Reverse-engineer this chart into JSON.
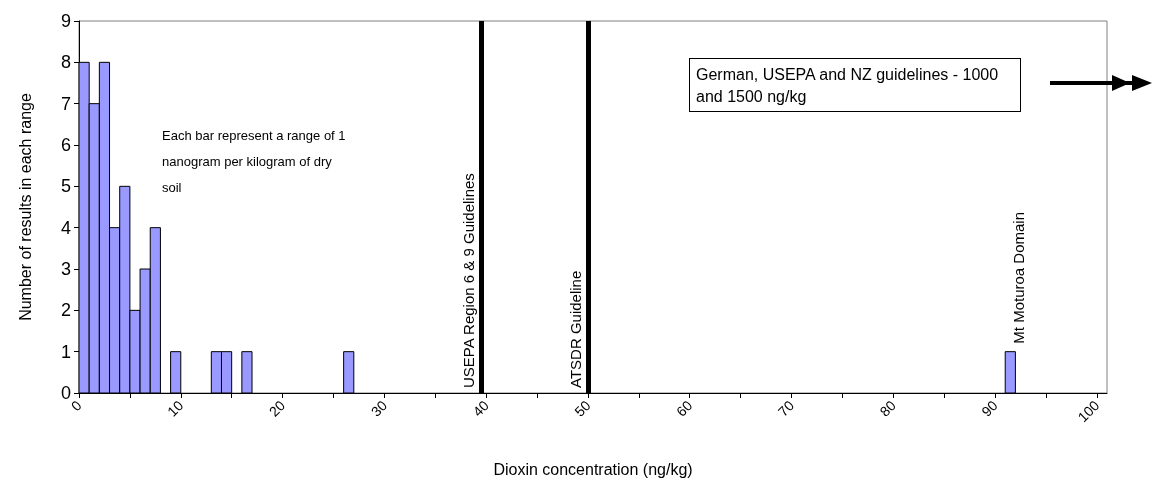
{
  "chart_data": {
    "type": "histogram",
    "xlabel": "Dioxin concentration (ng/kg)",
    "ylabel": "Number of results in each range",
    "bins": [
      0,
      1,
      2,
      3,
      4,
      5,
      6,
      7,
      8,
      9,
      10,
      11,
      12,
      13,
      14,
      15,
      16,
      17,
      18,
      19,
      20,
      21,
      22,
      23,
      24,
      25,
      26,
      27,
      28,
      29,
      30,
      31,
      32,
      33,
      34,
      35,
      36,
      37,
      38,
      39,
      40,
      41,
      42,
      43,
      44,
      45,
      46,
      47,
      48,
      49,
      50,
      51,
      52,
      53,
      54,
      55,
      56,
      57,
      58,
      59,
      60,
      61,
      62,
      63,
      64,
      65,
      66,
      67,
      68,
      69,
      70,
      71,
      72,
      73,
      74,
      75,
      76,
      77,
      78,
      79,
      80,
      81,
      82,
      83,
      84,
      85,
      86,
      87,
      88,
      89,
      90,
      91,
      92
    ],
    "values": [
      8,
      7,
      8,
      4,
      5,
      2,
      3,
      4,
      0,
      1,
      0,
      0,
      0,
      1,
      1,
      0,
      1,
      0,
      0,
      0,
      0,
      0,
      0,
      0,
      0,
      0,
      1,
      0,
      0,
      0,
      0,
      0,
      0,
      0,
      0,
      0,
      0,
      0,
      0,
      0,
      0,
      0,
      0,
      0,
      0,
      0,
      0,
      0,
      0,
      0,
      0,
      0,
      0,
      0,
      0,
      0,
      0,
      0,
      0,
      0,
      0,
      0,
      0,
      0,
      0,
      0,
      0,
      0,
      0,
      0,
      0,
      0,
      0,
      0,
      0,
      0,
      0,
      0,
      0,
      0,
      0,
      0,
      0,
      0,
      0,
      0,
      0,
      0,
      0,
      0,
      0,
      1
    ],
    "color": "#9999ff",
    "xlim": [
      0,
      101
    ],
    "xticks": [
      0,
      {
        "value": 5,
        "label": null
      },
      10,
      {
        "value": 15,
        "label": null
      },
      20,
      {
        "value": 25,
        "label": null
      },
      30,
      {
        "value": 35,
        "label": null
      },
      40,
      {
        "value": 45,
        "label": null
      },
      50,
      {
        "value": 55,
        "label": null
      },
      60,
      {
        "value": 65,
        "label": null
      },
      70,
      {
        "value": 75,
        "label": null
      },
      80,
      {
        "value": 85,
        "label": null
      },
      90,
      {
        "value": 95,
        "label": null
      },
      100
    ],
    "ylim": [
      0,
      9
    ],
    "yticks": [
      0,
      1,
      2,
      3,
      4,
      5,
      6,
      7,
      8,
      9
    ],
    "grid": false,
    "ref_lines": [
      {
        "axis": "x",
        "value": 39.5,
        "label": "USEPA Region 6 & 9 Guidelines",
        "color": "#000000"
      },
      {
        "axis": "x",
        "value": 50,
        "label": "ATSDR Guideline",
        "color": "#000000"
      }
    ],
    "annotations": [
      "Each bar represent a range of 1 nanogram per kilogram of dry soil",
      "German, USEPA and NZ guidelines - 1000 and 1500 ng/kg",
      {
        "text": "Mt Moturoa Domain",
        "x": 91.5,
        "y": 1
      }
    ]
  }
}
